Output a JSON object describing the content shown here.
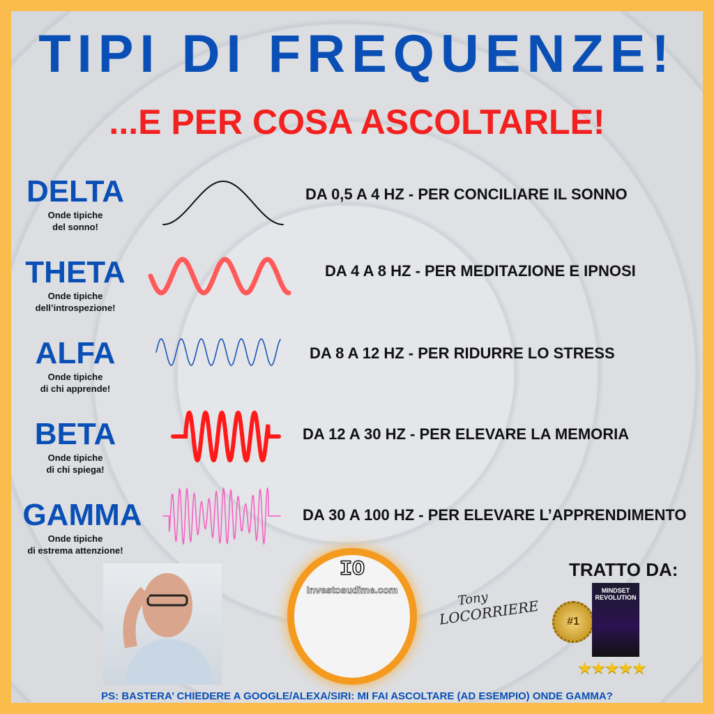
{
  "header": {
    "title": "TIPI DI FREQUENZE!",
    "subtitle": "...E PER COSA ASCOLTARLE!"
  },
  "waves": [
    {
      "name": "DELTA",
      "line1": "Onde tipiche",
      "line2": "del sonno!",
      "desc": "DA 0,5 A 4 HZ - PER CONCILIARE IL SONNO",
      "color": "#111111"
    },
    {
      "name": "THETA",
      "line1": "Onde tipiche",
      "line2": "dell’introspezione!",
      "desc": "DA 4 A 8 HZ - PER MEDITAZIONE E IPNOSI",
      "color": "#FF5A5A"
    },
    {
      "name": "ALFA",
      "line1": "Onde tipiche",
      "line2": "di chi apprende!",
      "desc": "DA 8 A 12 HZ - PER RIDURRE LO STRESS",
      "color": "#1A56B8"
    },
    {
      "name": "BETA",
      "line1": "Onde tipiche",
      "line2": "di chi spiega!",
      "desc": "DA 12 A 30 HZ - PER ELEVARE LA MEMORIA",
      "color": "#FF1A1A"
    },
    {
      "name": "GAMMA",
      "line1": "Onde tipiche",
      "line2": "di estrema attenzione!",
      "desc": "DA 30 A 100 HZ - PER ELEVARE L’APPRENDIMENTO",
      "color": "#F45DC0"
    }
  ],
  "footer": {
    "logo_io": "IO",
    "logo_url": "Investosudime.com",
    "signature_first": "Tony",
    "signature_last": "LOCORRIERE",
    "tratto": "TRATTO DA:",
    "badge": "#1",
    "book_title": "MINDSET REVOLUTION",
    "stars": "★★★★★",
    "ps": "PS: BASTERA’ CHIEDERE A GOOGLE/ALEXA/SIRI: MI FAI ASCOLTARE (AD ESEMPIO) ONDE GAMMA?"
  },
  "colors": {
    "border": "#FBBC4E",
    "title": "#0A4FB5",
    "subtitle": "#F2201E"
  }
}
